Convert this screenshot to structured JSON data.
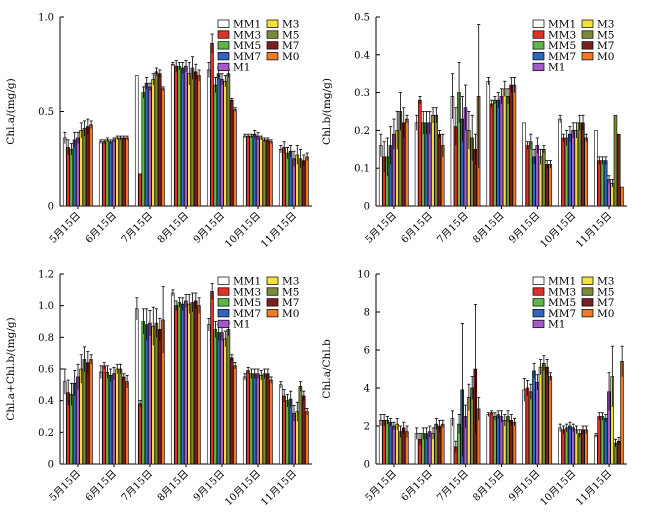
{
  "series_colors": {
    "MM1": "#ffffff",
    "MM3": "#e0302a",
    "MM5": "#5fb548",
    "MM7": "#2f66c0",
    "M1": "#a45bc8",
    "M3": "#f3e03a",
    "M5": "#7a8a38",
    "M7": "#7a1f1f",
    "M0": "#f07a2a"
  },
  "chart_data": [
    {
      "type": "bar",
      "panel": "top-left",
      "ylabel": "Chl.a/(mg/g)",
      "ylim": [
        0,
        1.0
      ],
      "yticks": [
        "0",
        "0.5",
        "1.0"
      ],
      "ytick_values": [
        0,
        0.5,
        1.0
      ],
      "categories": [
        "5月15日",
        "6月15日",
        "7月15日",
        "8月15日",
        "9月15日",
        "10月15日",
        "11月15日"
      ],
      "legend": {
        "placement": "top-right",
        "left_column": [
          "MM1",
          "MM3",
          "MM5",
          "MM7",
          "M1"
        ],
        "right_column": [
          "M3",
          "M5",
          "M7",
          "M0"
        ]
      },
      "series": [
        {
          "name": "MM1",
          "values": [
            0.36,
            0.34,
            0.69,
            0.75,
            0.72,
            0.37,
            0.3
          ],
          "errors": [
            0.03,
            0.01,
            0.0,
            0.01,
            0.04,
            0.01,
            0.02
          ]
        },
        {
          "name": "MM3",
          "values": [
            0.31,
            0.34,
            0.17,
            0.74,
            0.86,
            0.37,
            0.31
          ],
          "errors": [
            0.04,
            0.01,
            0.0,
            0.03,
            0.05,
            0.01,
            0.03
          ]
        },
        {
          "name": "MM5",
          "values": [
            0.3,
            0.35,
            0.6,
            0.74,
            0.64,
            0.37,
            0.28
          ],
          "errors": [
            0.03,
            0.01,
            0.03,
            0.02,
            0.04,
            0.01,
            0.03
          ]
        },
        {
          "name": "MM7",
          "values": [
            0.35,
            0.34,
            0.65,
            0.73,
            0.7,
            0.38,
            0.29
          ],
          "errors": [
            0.04,
            0.01,
            0.03,
            0.03,
            0.03,
            0.02,
            0.03
          ]
        },
        {
          "name": "M1",
          "values": [
            0.36,
            0.35,
            0.63,
            0.74,
            0.67,
            0.37,
            0.25
          ],
          "errors": [
            0.03,
            0.01,
            0.02,
            0.03,
            0.03,
            0.02,
            0.04
          ]
        },
        {
          "name": "M3",
          "values": [
            0.4,
            0.36,
            0.67,
            0.7,
            0.66,
            0.36,
            0.27
          ],
          "errors": [
            0.04,
            0.01,
            0.03,
            0.06,
            0.03,
            0.01,
            0.05
          ]
        },
        {
          "name": "M5",
          "values": [
            0.41,
            0.36,
            0.71,
            0.73,
            0.7,
            0.35,
            0.25
          ],
          "errors": [
            0.04,
            0.01,
            0.02,
            0.06,
            0.02,
            0.01,
            0.05
          ]
        },
        {
          "name": "M7",
          "values": [
            0.42,
            0.36,
            0.7,
            0.71,
            0.56,
            0.35,
            0.24
          ],
          "errors": [
            0.04,
            0.01,
            0.02,
            0.04,
            0.01,
            0.01,
            0.03
          ]
        },
        {
          "name": "M0",
          "values": [
            0.43,
            0.36,
            0.62,
            0.69,
            0.51,
            0.34,
            0.26
          ],
          "errors": [
            0.02,
            0.01,
            0.01,
            0.03,
            0.01,
            0.01,
            0.02
          ]
        }
      ]
    },
    {
      "type": "bar",
      "panel": "top-right",
      "ylabel": "Chl.b/(mg/g)",
      "ylim": [
        0,
        0.5
      ],
      "yticks": [
        "0",
        "0.1",
        "0.2",
        "0.3",
        "0.4",
        "0.5"
      ],
      "ytick_values": [
        0,
        0.1,
        0.2,
        0.3,
        0.4,
        0.5
      ],
      "categories": [
        "5月15日",
        "6月15日",
        "7月15日",
        "8月15日",
        "9月15日",
        "10月15日",
        "11月15日"
      ],
      "legend": {
        "placement": "top-right",
        "left_column": [
          "MM1",
          "MM3",
          "MM5",
          "MM7",
          "M1"
        ],
        "right_column": [
          "M3",
          "M5",
          "M7",
          "M0"
        ]
      },
      "series": [
        {
          "name": "MM1",
          "values": [
            0.16,
            0.22,
            0.29,
            0.33,
            0.22,
            0.23,
            0.2
          ],
          "errors": [
            0.03,
            0.02,
            0.06,
            0.01,
            0.0,
            0.01,
            0.0
          ]
        },
        {
          "name": "MM3",
          "values": [
            0.13,
            0.28,
            0.21,
            0.27,
            0.16,
            0.18,
            0.12
          ],
          "errors": [
            0.04,
            0.01,
            0.05,
            0.01,
            0.01,
            0.01,
            0.01
          ]
        },
        {
          "name": "MM5",
          "values": [
            0.13,
            0.22,
            0.3,
            0.28,
            0.17,
            0.18,
            0.12
          ],
          "errors": [
            0.05,
            0.03,
            0.08,
            0.01,
            0.02,
            0.02,
            0.01
          ]
        },
        {
          "name": "MM7",
          "values": [
            0.16,
            0.22,
            0.23,
            0.28,
            0.13,
            0.19,
            0.12
          ],
          "errors": [
            0.05,
            0.03,
            0.06,
            0.02,
            0.02,
            0.02,
            0.01
          ]
        },
        {
          "name": "M1",
          "values": [
            0.19,
            0.22,
            0.26,
            0.29,
            0.16,
            0.2,
            0.07
          ],
          "errors": [
            0.04,
            0.03,
            0.06,
            0.02,
            0.02,
            0.02,
            0.01
          ]
        },
        {
          "name": "M3",
          "values": [
            0.2,
            0.24,
            0.2,
            0.31,
            0.13,
            0.2,
            0.06
          ],
          "errors": [
            0.05,
            0.02,
            0.05,
            0.02,
            0.02,
            0.02,
            0.01
          ]
        },
        {
          "name": "M5",
          "values": [
            0.25,
            0.24,
            0.18,
            0.29,
            0.15,
            0.22,
            0.24
          ],
          "errors": [
            0.05,
            0.02,
            0.06,
            0.02,
            0.01,
            0.02,
            0.0
          ]
        },
        {
          "name": "M7",
          "values": [
            0.22,
            0.19,
            0.15,
            0.32,
            0.11,
            0.22,
            0.19
          ],
          "errors": [
            0.04,
            0.01,
            0.04,
            0.02,
            0.01,
            0.02,
            0.0
          ]
        },
        {
          "name": "M0",
          "values": [
            0.23,
            0.16,
            0.29,
            0.32,
            0.11,
            0.18,
            0.05
          ],
          "errors": [
            0.01,
            0.03,
            0.19,
            0.02,
            0.01,
            0.01,
            0.0
          ]
        }
      ]
    },
    {
      "type": "bar",
      "panel": "bottom-left",
      "ylabel": "Chl.a+Chl.b/(mg/g)",
      "ylim": [
        0,
        1.2
      ],
      "yticks": [
        "0",
        "0.2",
        "0.4",
        "0.6",
        "0.8",
        "1.0",
        "1.2"
      ],
      "ytick_values": [
        0,
        0.2,
        0.4,
        0.6,
        0.8,
        1.0,
        1.2
      ],
      "categories": [
        "5月15日",
        "6月15日",
        "7月15日",
        "8月15日",
        "9月15日",
        "10月15日",
        "11月15日"
      ],
      "legend": {
        "placement": "top-right",
        "left_column": [
          "MM1",
          "MM3",
          "MM5",
          "MM7",
          "M1"
        ],
        "right_column": [
          "M3",
          "M5",
          "M7",
          "M0"
        ]
      },
      "series": [
        {
          "name": "MM1",
          "values": [
            0.52,
            0.58,
            0.98,
            1.08,
            0.88,
            0.55,
            0.5
          ],
          "errors": [
            0.08,
            0.04,
            0.07,
            0.02,
            0.04,
            0.02,
            0.02
          ]
        },
        {
          "name": "MM3",
          "values": [
            0.45,
            0.62,
            0.38,
            1.0,
            1.09,
            0.59,
            0.43
          ],
          "errors": [
            0.08,
            0.02,
            0.02,
            0.03,
            0.05,
            0.02,
            0.04
          ]
        },
        {
          "name": "MM5",
          "values": [
            0.44,
            0.58,
            0.9,
            1.02,
            0.85,
            0.57,
            0.4
          ],
          "errors": [
            0.07,
            0.04,
            0.08,
            0.03,
            0.05,
            0.03,
            0.04
          ]
        },
        {
          "name": "MM7",
          "values": [
            0.51,
            0.56,
            0.88,
            1.01,
            0.83,
            0.57,
            0.41
          ],
          "errors": [
            0.08,
            0.04,
            0.1,
            0.04,
            0.05,
            0.03,
            0.05
          ]
        },
        {
          "name": "M1",
          "values": [
            0.55,
            0.57,
            0.89,
            1.03,
            0.83,
            0.57,
            0.32
          ],
          "errors": [
            0.08,
            0.04,
            0.08,
            0.04,
            0.05,
            0.03,
            0.05
          ]
        },
        {
          "name": "M3",
          "values": [
            0.6,
            0.6,
            0.87,
            1.01,
            0.79,
            0.56,
            0.33
          ],
          "errors": [
            0.09,
            0.03,
            0.12,
            0.06,
            0.05,
            0.03,
            0.06
          ]
        },
        {
          "name": "M5",
          "values": [
            0.66,
            0.6,
            0.89,
            1.02,
            0.85,
            0.57,
            0.49
          ],
          "errors": [
            0.08,
            0.03,
            0.09,
            0.06,
            0.04,
            0.03,
            0.03
          ]
        },
        {
          "name": "M7",
          "values": [
            0.64,
            0.55,
            0.85,
            1.03,
            0.67,
            0.57,
            0.43
          ],
          "errors": [
            0.07,
            0.02,
            0.07,
            0.05,
            0.02,
            0.03,
            0.03
          ]
        },
        {
          "name": "M0",
          "values": [
            0.66,
            0.52,
            0.91,
            1.0,
            0.62,
            0.53,
            0.33
          ],
          "errors": [
            0.03,
            0.04,
            0.21,
            0.05,
            0.02,
            0.02,
            0.02
          ]
        }
      ]
    },
    {
      "type": "bar",
      "panel": "bottom-right",
      "ylabel": "Chl.a/Chl.b",
      "ylim": [
        0,
        10
      ],
      "yticks": [
        "0",
        "2",
        "4",
        "6",
        "8",
        "10"
      ],
      "ytick_values": [
        0,
        2,
        4,
        6,
        8,
        10
      ],
      "categories": [
        "5月15日",
        "6月15日",
        "7月15日",
        "8月15日",
        "9月15日",
        "10月15日",
        "11月15日"
      ],
      "legend": {
        "placement": "top-right",
        "left_column": [
          "MM1",
          "MM3",
          "MM5",
          "MM7",
          "M1"
        ],
        "right_column": [
          "M3",
          "M5",
          "M7",
          "M0"
        ]
      },
      "series": [
        {
          "name": "MM1",
          "values": [
            2.3,
            1.6,
            2.4,
            2.6,
            3.9,
            1.9,
            1.5
          ],
          "errors": [
            0.3,
            0.3,
            0.4,
            0.1,
            0.6,
            0.2,
            0.1
          ]
        },
        {
          "name": "MM3",
          "values": [
            2.3,
            1.3,
            0.9,
            2.7,
            4.0,
            1.8,
            2.5
          ],
          "errors": [
            0.3,
            0.3,
            0.3,
            0.1,
            0.4,
            0.2,
            0.2
          ]
        },
        {
          "name": "MM5",
          "values": [
            2.3,
            1.6,
            2.1,
            2.5,
            3.8,
            1.9,
            2.5
          ],
          "errors": [
            0.2,
            0.3,
            0.5,
            0.2,
            0.4,
            0.2,
            0.2
          ]
        },
        {
          "name": "MM7",
          "values": [
            2.2,
            1.6,
            3.9,
            2.6,
            4.9,
            2.0,
            2.4
          ],
          "errors": [
            0.2,
            0.3,
            3.5,
            0.2,
            0.4,
            0.2,
            0.2
          ]
        },
        {
          "name": "M1",
          "values": [
            2.0,
            1.7,
            2.5,
            2.5,
            4.3,
            1.9,
            3.8
          ],
          "errors": [
            0.2,
            0.3,
            0.6,
            0.3,
            0.4,
            0.2,
            1.0
          ]
        },
        {
          "name": "M3",
          "values": [
            2.1,
            1.6,
            3.5,
            2.3,
            5.1,
            1.8,
            4.6
          ],
          "errors": [
            0.3,
            0.3,
            0.7,
            0.3,
            0.4,
            0.2,
            1.6
          ]
        },
        {
          "name": "M5",
          "values": [
            1.7,
            2.1,
            4.0,
            2.5,
            5.3,
            1.6,
            1.1
          ],
          "errors": [
            0.3,
            0.3,
            0.6,
            0.3,
            0.4,
            0.2,
            0.2
          ]
        },
        {
          "name": "M7",
          "values": [
            1.9,
            2.0,
            5.0,
            2.3,
            5.1,
            1.8,
            1.2
          ],
          "errors": [
            0.3,
            0.3,
            3.4,
            0.3,
            0.4,
            0.2,
            0.2
          ]
        },
        {
          "name": "M0",
          "values": [
            1.7,
            2.1,
            2.9,
            2.2,
            4.6,
            1.8,
            5.4
          ],
          "errors": [
            0.3,
            0.2,
            0.6,
            0.2,
            0.2,
            0.2,
            0.8
          ]
        }
      ]
    }
  ]
}
